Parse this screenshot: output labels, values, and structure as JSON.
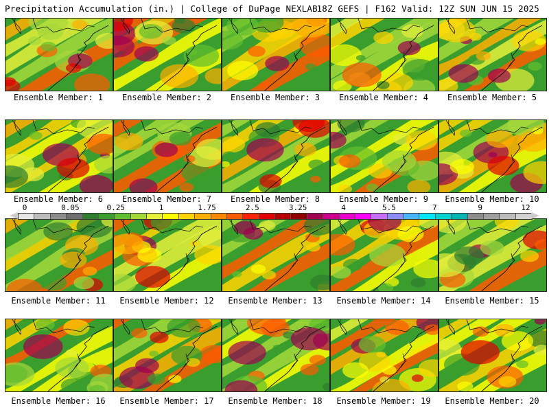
{
  "header": {
    "left": "Precipitation Accumulation (in.) | College of DuPage NEXLAB",
    "right": "18Z GEFS | F162 Valid: 12Z SUN JUN 15 2025"
  },
  "legend": {
    "tick_labels": [
      "0",
      "0.05",
      "0.25",
      "1",
      "1.75",
      "2.5",
      "3.25",
      "4",
      "5.5",
      "7",
      "9",
      "12"
    ],
    "colors": [
      "#e6e6e6",
      "#bdbdbd",
      "#8c8c8c",
      "#6e6e6e",
      "#2f7d2f",
      "#3a9e2e",
      "#62bf2e",
      "#a5d83a",
      "#e6f03a",
      "#ffff00",
      "#ffd400",
      "#ffae00",
      "#ff8a00",
      "#ff5a00",
      "#ff2200",
      "#e00000",
      "#b40000",
      "#8c0000",
      "#a00050",
      "#c8008c",
      "#e600c8",
      "#ff00ff",
      "#c86eff",
      "#8c8cff",
      "#4ab4ff",
      "#00e6ff",
      "#00d2d2",
      "#00b4b4",
      "#8c8c8c",
      "#a0a0a0",
      "#bdbdbd",
      "#d2d2d2"
    ]
  },
  "panels": [
    {
      "label": "Ensemble Member: 1"
    },
    {
      "label": "Ensemble Member: 2"
    },
    {
      "label": "Ensemble Member: 3"
    },
    {
      "label": "Ensemble Member: 4"
    },
    {
      "label": "Ensemble Member: 5"
    },
    {
      "label": "Ensemble Member: 6"
    },
    {
      "label": "Ensemble Member: 7"
    },
    {
      "label": "Ensemble Member: 8"
    },
    {
      "label": "Ensemble Member: 9"
    },
    {
      "label": "Ensemble Member: 10"
    },
    {
      "label": "Ensemble Member: 11"
    },
    {
      "label": "Ensemble Member: 12"
    },
    {
      "label": "Ensemble Member: 13"
    },
    {
      "label": "Ensemble Member: 14"
    },
    {
      "label": "Ensemble Member: 15"
    },
    {
      "label": "Ensemble Member: 16"
    },
    {
      "label": "Ensemble Member: 17"
    },
    {
      "label": "Ensemble Member: 18"
    },
    {
      "label": "Ensemble Member: 19"
    },
    {
      "label": "Ensemble Member: 20"
    }
  ]
}
